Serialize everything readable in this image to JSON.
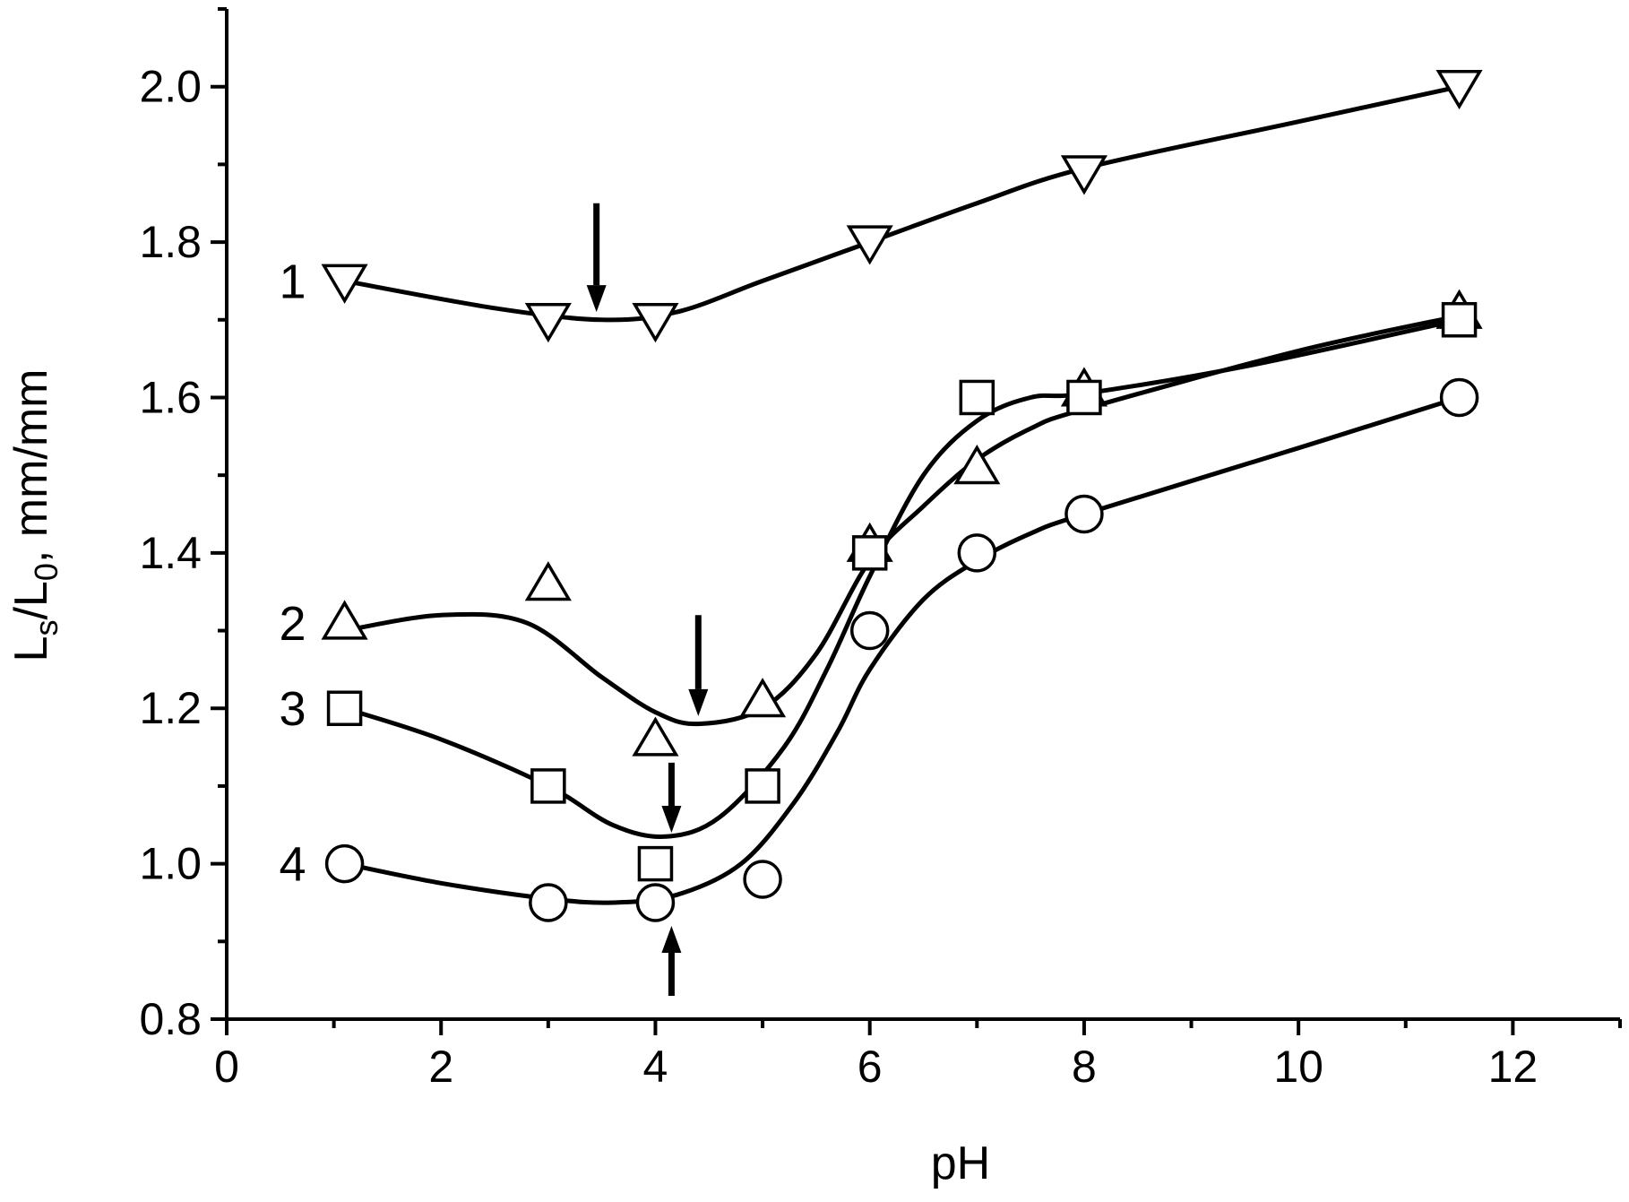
{
  "chart_data": {
    "type": "line",
    "title": "",
    "xlabel": "pH",
    "ylabel": {
      "main": "L",
      "sub1": "s",
      "mid": "/L",
      "sub2": "0",
      "tail": ", mm/mm"
    },
    "xlim": [
      0,
      13
    ],
    "ylim": [
      0.8,
      2.1
    ],
    "x_ticks": [
      0,
      2,
      4,
      6,
      8,
      10,
      12
    ],
    "y_ticks": [
      0.8,
      1.0,
      1.2,
      1.4,
      1.6,
      1.8,
      2.0
    ],
    "x_tick_labels": [
      "0",
      "2",
      "4",
      "6",
      "8",
      "10",
      "12"
    ],
    "y_tick_labels": [
      "0.8",
      "1.0",
      "1.2",
      "1.4",
      "1.6",
      "1.8",
      "2.0"
    ],
    "grid": false,
    "series": [
      {
        "name": "1",
        "marker": "triangle-down",
        "x": [
          1.1,
          3.0,
          4.0,
          6.0,
          8.0,
          11.5
        ],
        "y": [
          1.75,
          1.7,
          1.7,
          1.8,
          1.89,
          2.0
        ],
        "curve": [
          [
            1.1,
            1.75
          ],
          [
            2.5,
            1.715
          ],
          [
            3.5,
            1.7
          ],
          [
            4.2,
            1.71
          ],
          [
            5.0,
            1.75
          ],
          [
            6.0,
            1.8
          ],
          [
            7.0,
            1.85
          ],
          [
            8.0,
            1.895
          ],
          [
            10.0,
            1.955
          ],
          [
            11.5,
            2.0
          ]
        ]
      },
      {
        "name": "2",
        "marker": "triangle-up",
        "x": [
          1.1,
          3.0,
          4.0,
          5.0,
          6.0,
          7.0,
          8.0,
          11.5
        ],
        "y": [
          1.31,
          1.36,
          1.16,
          1.21,
          1.41,
          1.51,
          1.61,
          1.71
        ],
        "curve": [
          [
            1.1,
            1.3
          ],
          [
            2.0,
            1.32
          ],
          [
            2.8,
            1.31
          ],
          [
            3.5,
            1.24
          ],
          [
            4.0,
            1.195
          ],
          [
            4.4,
            1.18
          ],
          [
            5.0,
            1.2
          ],
          [
            5.5,
            1.27
          ],
          [
            6.0,
            1.39
          ],
          [
            6.5,
            1.46
          ],
          [
            7.0,
            1.52
          ],
          [
            7.5,
            1.56
          ],
          [
            8.0,
            1.585
          ],
          [
            10.0,
            1.66
          ],
          [
            11.5,
            1.705
          ]
        ]
      },
      {
        "name": "3",
        "marker": "square",
        "x": [
          1.1,
          3.0,
          4.0,
          5.0,
          6.0,
          7.0,
          8.0,
          11.5
        ],
        "y": [
          1.2,
          1.1,
          1.0,
          1.1,
          1.4,
          1.6,
          1.6,
          1.7
        ],
        "curve": [
          [
            1.1,
            1.2
          ],
          [
            2.0,
            1.16
          ],
          [
            3.0,
            1.1
          ],
          [
            3.6,
            1.05
          ],
          [
            4.1,
            1.035
          ],
          [
            4.6,
            1.06
          ],
          [
            5.2,
            1.15
          ],
          [
            5.6,
            1.25
          ],
          [
            6.0,
            1.37
          ],
          [
            6.5,
            1.5
          ],
          [
            7.0,
            1.57
          ],
          [
            7.5,
            1.6
          ],
          [
            8.0,
            1.605
          ],
          [
            9.5,
            1.64
          ],
          [
            11.5,
            1.7
          ]
        ]
      },
      {
        "name": "4",
        "marker": "circle",
        "x": [
          1.1,
          3.0,
          4.0,
          5.0,
          6.0,
          7.0,
          8.0,
          11.5
        ],
        "y": [
          1.0,
          0.95,
          0.95,
          0.98,
          1.3,
          1.4,
          1.45,
          1.6
        ],
        "curve": [
          [
            1.1,
            1.0
          ],
          [
            2.0,
            0.975
          ],
          [
            3.0,
            0.955
          ],
          [
            3.6,
            0.95
          ],
          [
            4.2,
            0.96
          ],
          [
            4.8,
            1.0
          ],
          [
            5.3,
            1.08
          ],
          [
            5.7,
            1.17
          ],
          [
            6.0,
            1.25
          ],
          [
            6.5,
            1.34
          ],
          [
            7.0,
            1.39
          ],
          [
            7.5,
            1.425
          ],
          [
            8.0,
            1.45
          ],
          [
            10.0,
            1.535
          ],
          [
            11.5,
            1.6
          ]
        ]
      }
    ],
    "arrows": [
      {
        "x": 3.45,
        "y_from": 1.85,
        "y_to": 1.71,
        "direction": "down"
      },
      {
        "x": 4.4,
        "y_from": 1.32,
        "y_to": 1.19,
        "direction": "down"
      },
      {
        "x": 4.15,
        "y_from": 1.13,
        "y_to": 1.04,
        "direction": "down"
      },
      {
        "x": 4.15,
        "y_from": 0.83,
        "y_to": 0.92,
        "direction": "up"
      }
    ]
  }
}
